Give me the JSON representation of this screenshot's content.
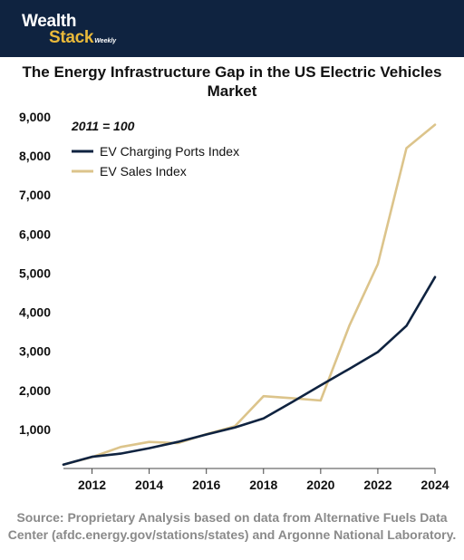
{
  "brand": {
    "top": "Wealth",
    "bottom": "Stack",
    "sub": "Weekly"
  },
  "source": "Source: Proprietary Analysis based on data from Alternative Fuels Data Center (afdc.energy.gov/stations/states) and Argonne National Laboratory.",
  "chart_data": {
    "type": "line",
    "title": "The Energy Infrastructure Gap in the US Electric Vehicles Market",
    "annotation": "2011 = 100",
    "xlabel": "",
    "ylabel": "",
    "x": [
      2011,
      2012,
      2013,
      2014,
      2015,
      2016,
      2017,
      2018,
      2019,
      2020,
      2021,
      2022,
      2023,
      2024
    ],
    "xlim": [
      2011,
      2024
    ],
    "ylim": [
      0,
      9000
    ],
    "xticks": [
      2012,
      2014,
      2016,
      2018,
      2020,
      2022,
      2024
    ],
    "xtick_labels": [
      "2012",
      "2014",
      "2016",
      "2018",
      "2020",
      "2022",
      "2024"
    ],
    "yticks": [
      1000,
      2000,
      3000,
      4000,
      5000,
      6000,
      7000,
      8000,
      9000
    ],
    "ytick_labels": [
      "1,000",
      "2,000",
      "3,000",
      "4,000",
      "5,000",
      "6,000",
      "7,000",
      "8,000",
      "9,000"
    ],
    "grid": false,
    "legend_position": "top-left",
    "series": [
      {
        "name": "EV Charging Ports Index",
        "color": "#0f2340",
        "values": [
          100,
          300,
          380,
          520,
          680,
          870,
          1050,
          1280,
          1700,
          2130,
          2550,
          2980,
          3650,
          4900
        ]
      },
      {
        "name": "EV Sales Index",
        "color": "#dcc48b",
        "values": [
          100,
          290,
          550,
          680,
          650,
          880,
          1080,
          1850,
          1800,
          1740,
          3650,
          5230,
          8200,
          8800
        ]
      }
    ]
  }
}
